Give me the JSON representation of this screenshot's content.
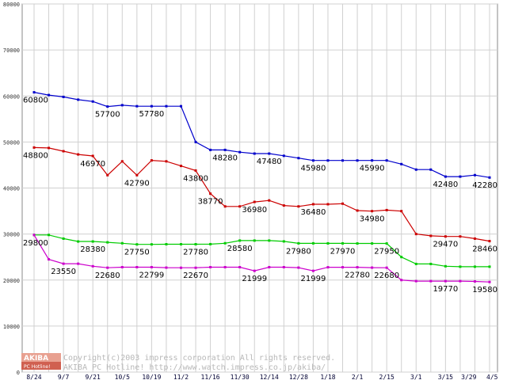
{
  "chart_data": {
    "type": "line",
    "title": "",
    "xlabel": "",
    "ylabel": "",
    "ylim": [
      0,
      80000
    ],
    "y_ticks": [
      0,
      10000,
      20000,
      30000,
      40000,
      50000,
      60000,
      70000,
      80000
    ],
    "grid": true,
    "x_tick_labels": [
      "8/24",
      "9/7",
      "9/21",
      "10/5",
      "10/19",
      "11/2",
      "11/16",
      "11/30",
      "12/14",
      "12/28",
      "1/18",
      "2/1",
      "2/15",
      "3/1",
      "3/15",
      "3/29",
      "4/5"
    ],
    "x_tick_index": [
      0,
      2,
      4,
      6,
      8,
      10,
      12,
      14,
      16,
      18,
      20,
      22,
      24,
      26,
      28,
      30,
      31
    ],
    "series": [
      {
        "color": "#0000cc",
        "values": [
          60800,
          60200,
          59800,
          59200,
          58800,
          57700,
          58000,
          57780,
          57780,
          57780,
          57780,
          50000,
          48280,
          48280,
          47800,
          47480,
          47480,
          47000,
          46500,
          45980,
          45980,
          45980,
          45980,
          45990,
          45990,
          45200,
          44000,
          44000,
          42480,
          42480,
          42800,
          42280
        ],
        "labels": [
          {
            "index": 0,
            "text": "60800",
            "pos": "below"
          },
          {
            "index": 5,
            "text": "57700",
            "pos": "below"
          },
          {
            "index": 8,
            "text": "57780",
            "pos": "below"
          },
          {
            "index": 13,
            "text": "48280",
            "pos": "below"
          },
          {
            "index": 16,
            "text": "47480",
            "pos": "below"
          },
          {
            "index": 19,
            "text": "45980",
            "pos": "below"
          },
          {
            "index": 23,
            "text": "45990",
            "pos": "below"
          },
          {
            "index": 28,
            "text": "42480",
            "pos": "below"
          },
          {
            "index": 31,
            "text": "42280",
            "pos": "below"
          }
        ]
      },
      {
        "color": "#cc0000",
        "values": [
          48800,
          48700,
          48000,
          47300,
          46970,
          42790,
          45800,
          42790,
          46000,
          45800,
          44800,
          43800,
          38770,
          36000,
          36000,
          36980,
          37300,
          36200,
          36000,
          36480,
          36480,
          36600,
          35100,
          34980,
          35200,
          34980,
          30000,
          29600,
          29470,
          29470,
          29000,
          28460
        ],
        "labels": [
          {
            "index": 0,
            "text": "48800",
            "pos": "below"
          },
          {
            "index": 4,
            "text": "46970",
            "pos": "below"
          },
          {
            "index": 7,
            "text": "42790",
            "pos": "below"
          },
          {
            "index": 11,
            "text": "43800",
            "pos": "below"
          },
          {
            "index": 12,
            "text": "38770",
            "pos": "below"
          },
          {
            "index": 15,
            "text": "36980",
            "pos": "below"
          },
          {
            "index": 19,
            "text": "36480",
            "pos": "below"
          },
          {
            "index": 23,
            "text": "34980",
            "pos": "below"
          },
          {
            "index": 28,
            "text": "29470",
            "pos": "below"
          },
          {
            "index": 31,
            "text": "28460",
            "pos": "below"
          }
        ]
      },
      {
        "color": "#00cc00",
        "values": [
          29800,
          29800,
          29000,
          28380,
          28380,
          28200,
          28000,
          27750,
          27750,
          27780,
          27780,
          27780,
          27800,
          28000,
          28580,
          28580,
          28580,
          28400,
          27980,
          27980,
          27970,
          27970,
          27950,
          27950,
          27950,
          25000,
          23500,
          23500,
          23000,
          22900,
          22900,
          22900
        ],
        "labels": [
          {
            "index": 0,
            "text": "29800",
            "pos": "below"
          },
          {
            "index": 4,
            "text": "28380",
            "pos": "below"
          },
          {
            "index": 7,
            "text": "27750",
            "pos": "below"
          },
          {
            "index": 11,
            "text": "27780",
            "pos": "below"
          },
          {
            "index": 14,
            "text": "28580",
            "pos": "below"
          },
          {
            "index": 18,
            "text": "27980",
            "pos": "below"
          },
          {
            "index": 21,
            "text": "27970",
            "pos": "below"
          },
          {
            "index": 24,
            "text": "27950",
            "pos": "below"
          }
        ]
      },
      {
        "color": "#cc00cc",
        "values": [
          29800,
          24500,
          23550,
          23550,
          23000,
          22680,
          22800,
          22799,
          22799,
          22700,
          22670,
          22670,
          22800,
          22800,
          22800,
          21999,
          22800,
          22800,
          22700,
          21999,
          22780,
          22780,
          22780,
          22700,
          22680,
          20000,
          19770,
          19770,
          19770,
          19770,
          19700,
          19580
        ],
        "labels": [
          {
            "index": 2,
            "text": "23550",
            "pos": "below"
          },
          {
            "index": 5,
            "text": "22680",
            "pos": "below"
          },
          {
            "index": 8,
            "text": "22799",
            "pos": "below"
          },
          {
            "index": 11,
            "text": "22670",
            "pos": "below"
          },
          {
            "index": 15,
            "text": "21999",
            "pos": "below"
          },
          {
            "index": 19,
            "text": "21999",
            "pos": "below"
          },
          {
            "index": 22,
            "text": "22780",
            "pos": "below"
          },
          {
            "index": 24,
            "text": "22680",
            "pos": "below"
          },
          {
            "index": 28,
            "text": "19770",
            "pos": "below"
          },
          {
            "index": 31,
            "text": "19580",
            "pos": "below"
          }
        ]
      }
    ]
  },
  "watermark": {
    "logo_main": "AKIBA",
    "logo_sub": "PC Hotline!",
    "line1": "Copyright(c)2003 impress corporation All rights reserved.",
    "line2": "AKIBA PC Hotline!  http://www.watch.impress.co.jp/akiba/"
  }
}
